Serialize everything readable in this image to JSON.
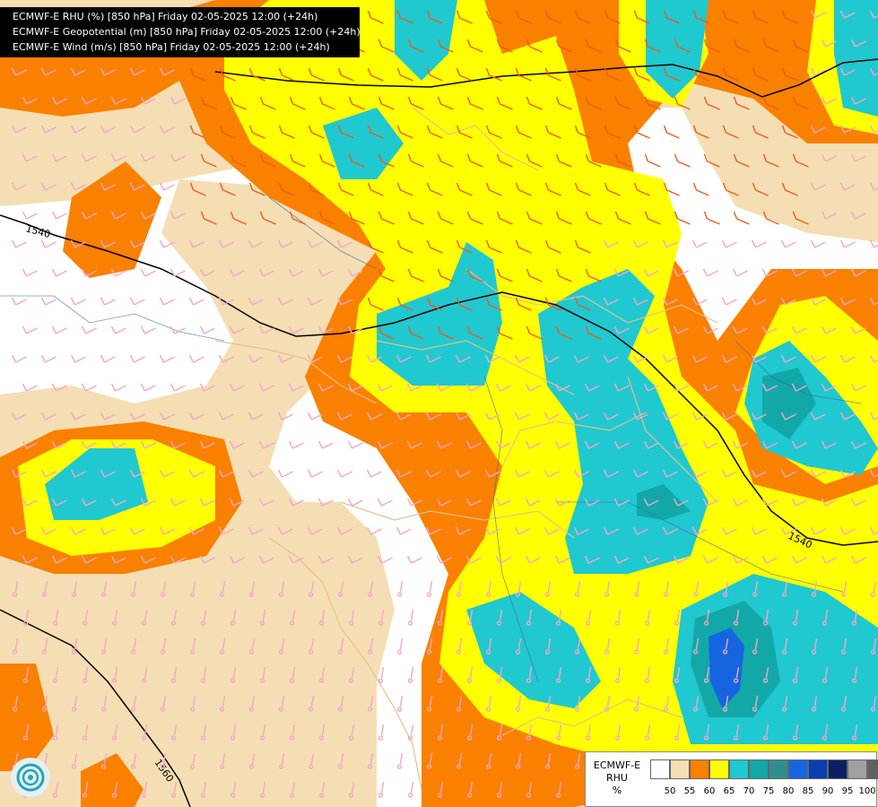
{
  "titles": [
    "ECMWF-E RHU (%) [850 hPa] Friday 02-05-2025 12:00 (+24h)",
    "ECMWF-E Geopotential (m) [850 hPa] Friday 02-05-2025 12:00 (+24h)",
    "ECMWF-E Wind (m/s) [850 hPa] Friday 02-05-2025 12:00 (+24h)"
  ],
  "legend": {
    "line1": "ECMWF-E",
    "line2": "RHU",
    "line3": "%",
    "swatch_colors": [
      "#ffffff",
      "#f5deb3",
      "#fa8000",
      "#ffff00",
      "#20c8d0",
      "#12a8a8",
      "#2f8f8f",
      "#1565e0",
      "#0a3fb0",
      "#0a2060",
      "#a0a0a0",
      "#606060"
    ],
    "ticks": [
      "50",
      "55",
      "60",
      "65",
      "70",
      "75",
      "80",
      "85",
      "90",
      "95",
      "100"
    ]
  },
  "contours": {
    "label_1540_a": "1540",
    "label_1540_b": "1540",
    "label_1560": "1560"
  },
  "colors": {
    "rh_50_55": "#f5deb3",
    "rh_55_60": "#fa8000",
    "rh_60_65": "#ffff00",
    "rh_65_70": "#20c8d0",
    "rh_70_75": "#12a8a8",
    "rh_75_80": "#1565e0",
    "barb_orange": "#ef5a1a",
    "barb_pink": "#f4a6c8",
    "border": "#e6c08a",
    "river": "#3a67a8"
  }
}
